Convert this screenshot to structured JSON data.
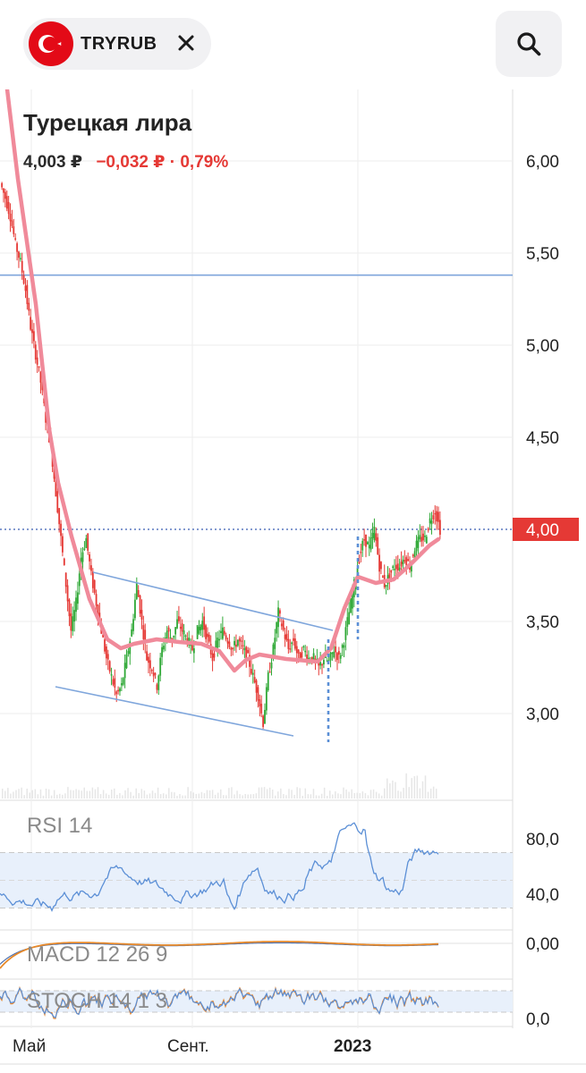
{
  "header": {
    "ticker": "TRYRUB",
    "close_icon": "close-icon",
    "search_icon": "search-icon",
    "flag_icon": "turkey-flag-icon"
  },
  "title": "Турецкая лира",
  "quote": {
    "price": "4,003 ₽",
    "change": "−0,032 ₽ · 0,79%"
  },
  "colors": {
    "up": "#2fa836",
    "down": "#e53935",
    "ma_line": "#f08a9a",
    "trend_line": "#7fa6dc",
    "price_tag": "#e53935",
    "rsi_line": "#5b8fd6",
    "macd_line": "#e88a2a",
    "macd_signal": "#4a6fb0",
    "stoch_k": "#5b8fd6",
    "stoch_d": "#e8852a"
  },
  "chart_data": [
    {
      "type": "candlestick",
      "title": "Турецкая лира",
      "x_ticks": [
        "Май",
        "Сент.",
        "2023"
      ],
      "y_ticks": [
        "3,00",
        "3,50",
        "4,00",
        "4,50",
        "5,00",
        "5,50",
        "6,00"
      ],
      "ylim": [
        2.5,
        6.4
      ],
      "current_price_tag": "4,00",
      "horizontal_lines": [
        5.38,
        4.0
      ],
      "overlays": [
        "moving-average",
        "descending-channel",
        "breakout-target"
      ],
      "volume_shown": true,
      "grid": true,
      "close_series": [
        5.8,
        5.7,
        5.55,
        5.45,
        5.3,
        5.1,
        4.95,
        4.8,
        4.6,
        4.45,
        4.2,
        3.95,
        3.7,
        3.45,
        3.6,
        3.85,
        3.95,
        3.75,
        3.6,
        3.45,
        3.3,
        3.2,
        3.1,
        3.15,
        3.3,
        3.45,
        3.7,
        3.5,
        3.3,
        3.25,
        3.15,
        3.35,
        3.45,
        3.4,
        3.5,
        3.45,
        3.4,
        3.35,
        3.45,
        3.5,
        3.4,
        3.3,
        3.4,
        3.45,
        3.4,
        3.35,
        3.4,
        3.35,
        3.3,
        3.2,
        3.1,
        2.95,
        3.2,
        3.35,
        3.55,
        3.45,
        3.35,
        3.4,
        3.3,
        3.35,
        3.3,
        3.3,
        3.25,
        3.3,
        3.28,
        3.35,
        3.3,
        3.4,
        3.55,
        3.7,
        3.85,
        3.95,
        3.9,
        4.0,
        3.8,
        3.7,
        3.75,
        3.8,
        3.8,
        3.85,
        3.8,
        3.9,
        3.95,
        3.95,
        4.05,
        4.1,
        4.0
      ]
    },
    {
      "type": "line",
      "name": "RSI 14",
      "y_ticks": [
        "40,0",
        "80,0"
      ],
      "band": [
        30,
        70
      ]
    },
    {
      "type": "line",
      "name": "MACD 12 26 9",
      "y_ticks": [
        "0,00"
      ]
    },
    {
      "type": "line",
      "name": "STOCH 14 1 3",
      "y_ticks": [
        "0,0"
      ]
    }
  ],
  "indicators": {
    "rsi_label": "RSI 14",
    "macd_label": "MACD 12 26 9",
    "stoch_label": "STOCH 14 1 3"
  }
}
